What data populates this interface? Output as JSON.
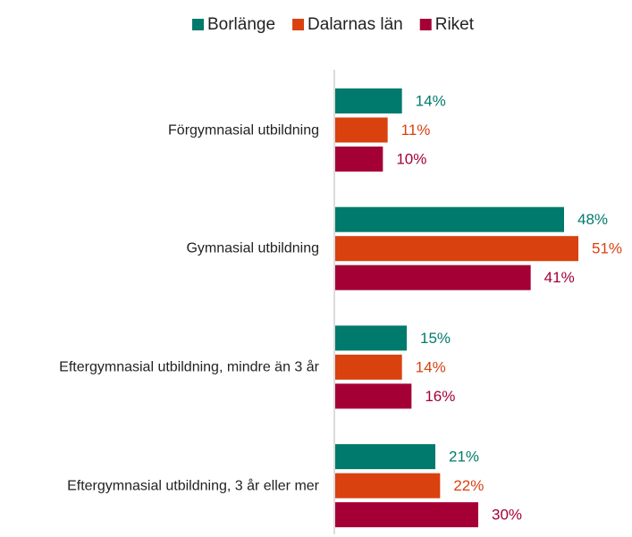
{
  "chart_data": {
    "type": "bar",
    "orientation": "horizontal",
    "categories": [
      "Förgymnasial utbildning",
      "Gymnasial utbildning",
      "Eftergymnasial utbildning, mindre än 3 år",
      "Eftergymnasial utbildning, 3 år eller mer"
    ],
    "series": [
      {
        "name": "Borlänge",
        "color": "#007a6c",
        "values": [
          14,
          48,
          15,
          21
        ],
        "value_labels": [
          "14%",
          "48%",
          "15%",
          "21%"
        ]
      },
      {
        "name": "Dalarnas län",
        "color": "#d9410f",
        "values": [
          11,
          51,
          14,
          22
        ],
        "value_labels": [
          "11%",
          "51%",
          "14%",
          "22%"
        ]
      },
      {
        "name": "Riket",
        "color": "#a50035",
        "values": [
          10,
          41,
          16,
          30
        ],
        "value_labels": [
          "10%",
          "41%",
          "16%",
          "30%"
        ]
      }
    ],
    "legend": "top"
  }
}
